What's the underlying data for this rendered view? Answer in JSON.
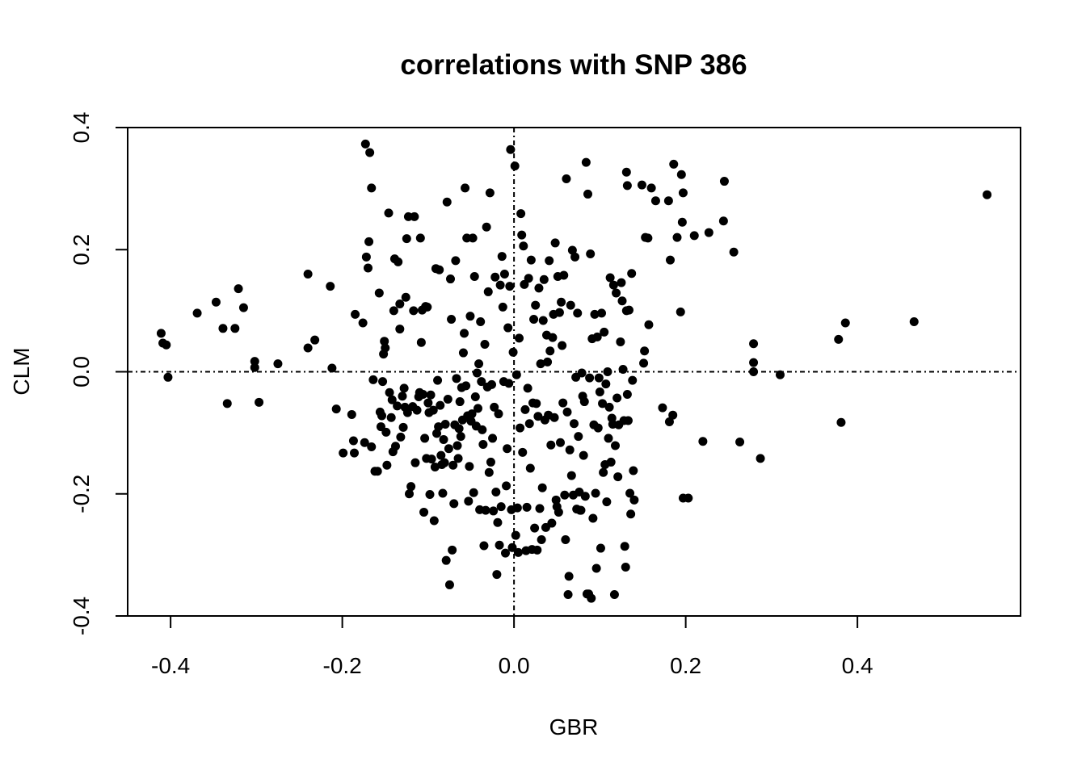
{
  "chart_data": {
    "type": "scatter",
    "title": "correlations with SNP 386",
    "xlabel": "GBR",
    "ylabel": "CLM",
    "xlim": [
      -0.45,
      0.59
    ],
    "ylim": [
      -0.4,
      0.4
    ],
    "xticks": [
      -0.4,
      -0.2,
      0.0,
      0.2,
      0.4
    ],
    "xtick_labels": [
      "-0.4",
      "-0.2",
      "0.0",
      "0.2",
      "0.4"
    ],
    "yticks": [
      -0.4,
      -0.2,
      0.0,
      0.2,
      0.4
    ],
    "ytick_labels": [
      "-0.4",
      "-0.2",
      "0.0",
      "0.2",
      "0.4"
    ],
    "reference_lines": {
      "x": 0.0,
      "y": 0.0,
      "style": "dot-dash"
    },
    "grid": false,
    "marker_color": "#000000",
    "points": [
      [
        -0.411,
        0.063
      ],
      [
        -0.409,
        0.047
      ],
      [
        -0.405,
        0.044
      ],
      [
        -0.403,
        -0.009
      ],
      [
        -0.369,
        0.096
      ],
      [
        -0.347,
        0.114
      ],
      [
        -0.339,
        0.071
      ],
      [
        -0.334,
        -0.052
      ],
      [
        -0.325,
        0.071
      ],
      [
        -0.321,
        0.136
      ],
      [
        -0.315,
        0.105
      ],
      [
        -0.302,
        0.017
      ],
      [
        -0.302,
        0.007
      ],
      [
        -0.297,
        -0.05
      ],
      [
        -0.275,
        0.013
      ],
      [
        -0.24,
        0.16
      ],
      [
        -0.24,
        0.039
      ],
      [
        -0.232,
        0.052
      ],
      [
        -0.214,
        0.14
      ],
      [
        -0.212,
        0.006
      ],
      [
        -0.207,
        -0.061
      ],
      [
        -0.199,
        -0.133
      ],
      [
        -0.189,
        -0.07
      ],
      [
        -0.187,
        -0.113
      ],
      [
        -0.186,
        -0.133
      ],
      [
        -0.185,
        0.094
      ],
      [
        -0.176,
        0.08
      ],
      [
        -0.174,
        -0.116
      ],
      [
        -0.173,
        0.373
      ],
      [
        -0.172,
        0.188
      ],
      [
        -0.17,
        0.17
      ],
      [
        -0.169,
        0.213
      ],
      [
        -0.168,
        0.359
      ],
      [
        -0.166,
        0.301
      ],
      [
        -0.166,
        -0.123
      ],
      [
        -0.164,
        -0.013
      ],
      [
        -0.162,
        -0.163
      ],
      [
        -0.159,
        -0.163
      ],
      [
        -0.157,
        0.129
      ],
      [
        -0.156,
        -0.066
      ],
      [
        -0.155,
        -0.09
      ],
      [
        -0.154,
        -0.072
      ],
      [
        -0.153,
        -0.016
      ],
      [
        -0.152,
        0.029
      ],
      [
        -0.151,
        0.05
      ],
      [
        -0.15,
        0.039
      ],
      [
        -0.149,
        -0.099
      ],
      [
        -0.148,
        -0.153
      ],
      [
        -0.146,
        0.26
      ],
      [
        -0.145,
        -0.034
      ],
      [
        -0.143,
        -0.075
      ],
      [
        -0.142,
        -0.046
      ],
      [
        -0.141,
        -0.131
      ],
      [
        -0.14,
        0.1
      ],
      [
        -0.139,
        0.185
      ],
      [
        -0.138,
        -0.122
      ],
      [
        -0.136,
        -0.056
      ],
      [
        -0.135,
        0.18
      ],
      [
        -0.133,
        0.111
      ],
      [
        -0.133,
        0.07
      ],
      [
        -0.132,
        -0.107
      ],
      [
        -0.13,
        -0.04
      ],
      [
        -0.129,
        -0.091
      ],
      [
        -0.128,
        -0.027
      ],
      [
        -0.127,
        -0.058
      ],
      [
        -0.126,
        0.122
      ],
      [
        -0.125,
        0.218
      ],
      [
        -0.124,
        -0.067
      ],
      [
        -0.123,
        0.254
      ],
      [
        -0.122,
        -0.2
      ],
      [
        -0.12,
        -0.188
      ],
      [
        -0.118,
        -0.057
      ],
      [
        -0.117,
        0.1
      ],
      [
        -0.116,
        0.254
      ],
      [
        -0.115,
        -0.149
      ],
      [
        -0.113,
        -0.063
      ],
      [
        -0.111,
        -0.041
      ],
      [
        -0.11,
        -0.034
      ],
      [
        -0.109,
        0.219
      ],
      [
        -0.108,
        0.048
      ],
      [
        -0.107,
        0.101
      ],
      [
        -0.106,
        -0.037
      ],
      [
        -0.105,
        -0.23
      ],
      [
        -0.104,
        -0.109
      ],
      [
        -0.103,
        0.107
      ],
      [
        -0.102,
        -0.142
      ],
      [
        -0.101,
        0.106
      ],
      [
        -0.1,
        -0.051
      ],
      [
        -0.099,
        -0.067
      ],
      [
        -0.098,
        -0.201
      ],
      [
        -0.097,
        -0.038
      ],
      [
        -0.096,
        -0.143
      ],
      [
        -0.094,
        -0.063
      ],
      [
        -0.093,
        -0.244
      ],
      [
        -0.092,
        -0.156
      ],
      [
        -0.091,
        0.169
      ],
      [
        -0.09,
        -0.101
      ],
      [
        -0.089,
        -0.014
      ],
      [
        -0.088,
        -0.09
      ],
      [
        -0.087,
        0.167
      ],
      [
        -0.086,
        -0.055
      ],
      [
        -0.085,
        -0.137
      ],
      [
        -0.084,
        -0.152
      ],
      [
        -0.083,
        -0.199
      ],
      [
        -0.082,
        -0.111
      ],
      [
        -0.081,
        -0.149
      ],
      [
        -0.08,
        -0.086
      ],
      [
        -0.079,
        -0.309
      ],
      [
        -0.078,
        0.278
      ],
      [
        -0.077,
        -0.045
      ],
      [
        -0.076,
        -0.126
      ],
      [
        -0.075,
        -0.349
      ],
      [
        -0.074,
        0.152
      ],
      [
        -0.073,
        0.086
      ],
      [
        -0.072,
        -0.292
      ],
      [
        -0.071,
        -0.153
      ],
      [
        -0.07,
        -0.216
      ],
      [
        -0.069,
        -0.087
      ],
      [
        -0.068,
        0.182
      ],
      [
        -0.067,
        -0.011
      ],
      [
        -0.066,
        -0.121
      ],
      [
        -0.065,
        -0.142
      ],
      [
        -0.064,
        -0.093
      ],
      [
        -0.063,
        -0.049
      ],
      [
        -0.062,
        -0.106
      ],
      [
        -0.061,
        -0.026
      ],
      [
        -0.06,
        -0.079
      ],
      [
        -0.059,
        0.031
      ],
      [
        -0.058,
        0.063
      ],
      [
        -0.057,
        0.301
      ],
      [
        -0.056,
        -0.023
      ],
      [
        -0.055,
        0.219
      ],
      [
        -0.054,
        -0.072
      ],
      [
        -0.053,
        -0.212
      ],
      [
        -0.052,
        -0.155
      ],
      [
        -0.051,
        0.091
      ],
      [
        -0.05,
        -0.081
      ],
      [
        -0.049,
        -0.069
      ],
      [
        -0.048,
        0.219
      ],
      [
        -0.047,
        -0.198
      ],
      [
        -0.046,
        0.156
      ],
      [
        -0.045,
        -0.041
      ],
      [
        -0.044,
        -0.089
      ],
      [
        -0.043,
        -0.002
      ],
      [
        -0.042,
        -0.06
      ],
      [
        -0.041,
        0.013
      ],
      [
        -0.04,
        -0.226
      ],
      [
        -0.039,
        0.082
      ],
      [
        -0.038,
        -0.016
      ],
      [
        -0.037,
        -0.095
      ],
      [
        -0.036,
        -0.119
      ],
      [
        -0.035,
        -0.285
      ],
      [
        -0.034,
        0.045
      ],
      [
        -0.033,
        -0.227
      ],
      [
        -0.032,
        0.237
      ],
      [
        -0.031,
        -0.025
      ],
      [
        -0.03,
        0.131
      ],
      [
        -0.029,
        -0.165
      ],
      [
        -0.028,
        0.293
      ],
      [
        -0.027,
        -0.148
      ],
      [
        -0.026,
        -0.021
      ],
      [
        -0.025,
        -0.109
      ],
      [
        -0.024,
        -0.228
      ],
      [
        -0.023,
        -0.058
      ],
      [
        -0.022,
        0.155
      ],
      [
        -0.021,
        -0.197
      ],
      [
        -0.02,
        -0.332
      ],
      [
        -0.019,
        -0.247
      ],
      [
        -0.018,
        -0.069
      ],
      [
        -0.017,
        -0.284
      ],
      [
        -0.016,
        0.142
      ],
      [
        -0.015,
        -0.221
      ],
      [
        -0.014,
        0.189
      ],
      [
        -0.013,
        0.106
      ],
      [
        -0.012,
        -0.016
      ],
      [
        -0.011,
        0.16
      ],
      [
        -0.01,
        -0.297
      ],
      [
        -0.009,
        -0.187
      ],
      [
        -0.008,
        -0.126
      ],
      [
        -0.007,
        0.072
      ],
      [
        -0.006,
        -0.019
      ],
      [
        -0.005,
        0.14
      ],
      [
        -0.004,
        0.364
      ],
      [
        -0.003,
        -0.226
      ],
      [
        -0.002,
        -0.288
      ],
      [
        -0.001,
        0.032
      ],
      [
        0.001,
        0.337
      ],
      [
        0.002,
        -0.268
      ],
      [
        0.003,
        -0.005
      ],
      [
        0.004,
        -0.223
      ],
      [
        0.005,
        -0.296
      ],
      [
        0.006,
        0.055
      ],
      [
        0.007,
        -0.092
      ],
      [
        0.008,
        0.259
      ],
      [
        0.009,
        0.224
      ],
      [
        0.01,
        -0.132
      ],
      [
        0.011,
        0.206
      ],
      [
        0.012,
        0.143
      ],
      [
        0.013,
        -0.062
      ],
      [
        0.014,
        -0.293
      ],
      [
        0.015,
        -0.222
      ],
      [
        0.016,
        -0.027
      ],
      [
        0.017,
        0.153
      ],
      [
        0.018,
        -0.085
      ],
      [
        0.019,
        -0.158
      ],
      [
        0.02,
        0.183
      ],
      [
        0.021,
        -0.291
      ],
      [
        0.022,
        -0.051
      ],
      [
        0.023,
        0.086
      ],
      [
        0.024,
        -0.256
      ],
      [
        0.025,
        0.109
      ],
      [
        0.026,
        -0.052
      ],
      [
        0.027,
        -0.292
      ],
      [
        0.028,
        -0.073
      ],
      [
        0.029,
        0.137
      ],
      [
        0.03,
        -0.224
      ],
      [
        0.031,
        0.013
      ],
      [
        0.032,
        -0.275
      ],
      [
        0.033,
        -0.19
      ],
      [
        0.034,
        0.084
      ],
      [
        0.035,
        0.151
      ],
      [
        0.036,
        -0.079
      ],
      [
        0.037,
        -0.255
      ],
      [
        0.038,
        0.06
      ],
      [
        0.039,
        0.016
      ],
      [
        0.04,
        -0.071
      ],
      [
        0.041,
        0.182
      ],
      [
        0.042,
        0.034
      ],
      [
        0.043,
        -0.12
      ],
      [
        0.044,
        -0.248
      ],
      [
        0.045,
        0.056
      ],
      [
        0.046,
        0.094
      ],
      [
        0.047,
        -0.075
      ],
      [
        0.048,
        0.211
      ],
      [
        0.049,
        -0.21
      ],
      [
        0.05,
        -0.221
      ],
      [
        0.051,
        0.156
      ],
      [
        0.052,
        -0.23
      ],
      [
        0.053,
        0.097
      ],
      [
        0.054,
        -0.116
      ],
      [
        0.055,
        0.114
      ],
      [
        0.056,
        0.043
      ],
      [
        0.057,
        -0.051
      ],
      [
        0.058,
        0.158
      ],
      [
        0.059,
        -0.202
      ],
      [
        0.06,
        -0.275
      ],
      [
        0.061,
        0.316
      ],
      [
        0.062,
        -0.066
      ],
      [
        0.063,
        -0.365
      ],
      [
        0.064,
        -0.335
      ],
      [
        0.065,
        -0.128
      ],
      [
        0.066,
        0.109
      ],
      [
        0.067,
        -0.17
      ],
      [
        0.068,
        0.199
      ],
      [
        0.069,
        -0.202
      ],
      [
        0.07,
        -0.085
      ],
      [
        0.071,
        0.188
      ],
      [
        0.072,
        -0.009
      ],
      [
        0.073,
        -0.225
      ],
      [
        0.074,
        0.096
      ],
      [
        0.075,
        -0.106
      ],
      [
        0.076,
        -0.197
      ],
      [
        0.077,
        -0.227
      ],
      [
        0.078,
        -0.227
      ],
      [
        0.079,
        -0.002
      ],
      [
        0.08,
        -0.04
      ],
      [
        0.081,
        -0.137
      ],
      [
        0.082,
        -0.049
      ],
      [
        0.083,
        -0.204
      ],
      [
        0.084,
        0.343
      ],
      [
        0.085,
        -0.364
      ],
      [
        0.086,
        0.291
      ],
      [
        0.087,
        -0.364
      ],
      [
        0.088,
        -0.01
      ],
      [
        0.089,
        0.193
      ],
      [
        0.09,
        -0.371
      ],
      [
        0.091,
        0.054
      ],
      [
        0.092,
        -0.24
      ],
      [
        0.093,
        -0.087
      ],
      [
        0.094,
        0.094
      ],
      [
        0.095,
        -0.199
      ],
      [
        0.096,
        -0.322
      ],
      [
        0.097,
        0.057
      ],
      [
        0.098,
        -0.092
      ],
      [
        0.099,
        -0.01
      ],
      [
        0.1,
        -0.033
      ],
      [
        0.101,
        -0.289
      ],
      [
        0.102,
        0.096
      ],
      [
        0.103,
        -0.052
      ],
      [
        0.104,
        -0.165
      ],
      [
        0.105,
        0.065
      ],
      [
        0.106,
        -0.152
      ],
      [
        0.107,
        -0.02
      ],
      [
        0.108,
        -0.213
      ],
      [
        0.109,
        0.0
      ],
      [
        0.11,
        -0.109
      ],
      [
        0.111,
        -0.058
      ],
      [
        0.112,
        0.154
      ],
      [
        0.113,
        -0.148
      ],
      [
        0.114,
        -0.076
      ],
      [
        0.115,
        -0.086
      ],
      [
        0.116,
        0.142
      ],
      [
        0.117,
        -0.365
      ],
      [
        0.118,
        -0.121
      ],
      [
        0.119,
        0.129
      ],
      [
        0.12,
        -0.043
      ],
      [
        0.121,
        -0.172
      ],
      [
        0.122,
        -0.087
      ],
      [
        0.124,
        0.049
      ],
      [
        0.125,
        0.146
      ],
      [
        0.126,
        0.116
      ],
      [
        0.127,
        0.004
      ],
      [
        0.128,
        -0.08
      ],
      [
        0.129,
        -0.286
      ],
      [
        0.13,
        -0.32
      ],
      [
        0.131,
        0.1
      ],
      [
        0.132,
        -0.037
      ],
      [
        0.133,
        -0.08
      ],
      [
        0.134,
        0.101
      ],
      [
        0.135,
        -0.199
      ],
      [
        0.136,
        -0.233
      ],
      [
        0.137,
        0.161
      ],
      [
        0.138,
        -0.014
      ],
      [
        0.139,
        -0.162
      ],
      [
        0.14,
        -0.21
      ],
      [
        0.131,
        0.327
      ],
      [
        0.132,
        0.305
      ],
      [
        0.149,
        0.306
      ],
      [
        0.151,
        0.014
      ],
      [
        0.152,
        0.034
      ],
      [
        0.153,
        0.22
      ],
      [
        0.156,
        0.219
      ],
      [
        0.157,
        0.077
      ],
      [
        0.16,
        0.301
      ],
      [
        0.165,
        0.28
      ],
      [
        0.173,
        -0.059
      ],
      [
        0.18,
        0.28
      ],
      [
        0.181,
        -0.082
      ],
      [
        0.182,
        0.183
      ],
      [
        0.185,
        -0.071
      ],
      [
        0.186,
        0.34
      ],
      [
        0.19,
        0.22
      ],
      [
        0.194,
        0.098
      ],
      [
        0.195,
        0.323
      ],
      [
        0.196,
        0.245
      ],
      [
        0.197,
        0.293
      ],
      [
        0.197,
        -0.207
      ],
      [
        0.203,
        -0.207
      ],
      [
        0.21,
        0.223
      ],
      [
        0.22,
        -0.114
      ],
      [
        0.227,
        0.228
      ],
      [
        0.244,
        0.247
      ],
      [
        0.245,
        0.312
      ],
      [
        0.256,
        0.196
      ],
      [
        0.263,
        -0.115
      ],
      [
        0.279,
        0.046
      ],
      [
        0.279,
        0.015
      ],
      [
        0.279,
        0.0
      ],
      [
        0.287,
        -0.142
      ],
      [
        0.31,
        -0.005
      ],
      [
        0.378,
        0.053
      ],
      [
        0.381,
        -0.083
      ],
      [
        0.386,
        0.08
      ],
      [
        0.466,
        0.082
      ],
      [
        0.551,
        0.29
      ]
    ]
  }
}
